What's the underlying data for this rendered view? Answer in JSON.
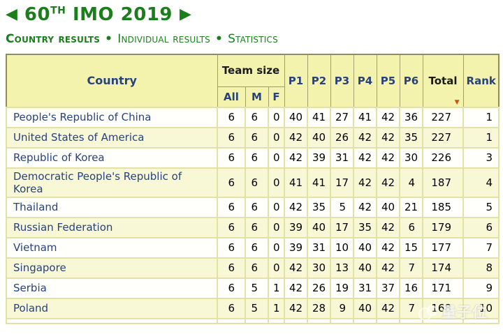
{
  "header": {
    "prev_arrow": "◀",
    "next_arrow": "▶",
    "title_number": "60",
    "title_sup": "TH",
    "title_rest": "IMO 2019"
  },
  "nav": {
    "separator": "•",
    "items": [
      {
        "label": "Country results",
        "active": true
      },
      {
        "label": "Individual results",
        "active": false
      },
      {
        "label": "Statistics",
        "active": false
      }
    ]
  },
  "table": {
    "col_country": "Country",
    "col_team_size": "Team size",
    "subcols": [
      "All",
      "M",
      "F"
    ],
    "col_problems": [
      "P1",
      "P2",
      "P3",
      "P4",
      "P5",
      "P6"
    ],
    "col_total": "Total",
    "col_rank": "Rank",
    "sort_indicator": "▼",
    "sorted_by": "Total",
    "rows": [
      {
        "country": "People's Republic of China",
        "all": 6,
        "m": 6,
        "f": 0,
        "p": [
          40,
          41,
          27,
          41,
          42,
          36
        ],
        "total": 227,
        "rank": 1
      },
      {
        "country": "United States of America",
        "all": 6,
        "m": 6,
        "f": 0,
        "p": [
          42,
          40,
          26,
          42,
          42,
          35
        ],
        "total": 227,
        "rank": 1
      },
      {
        "country": "Republic of Korea",
        "all": 6,
        "m": 6,
        "f": 0,
        "p": [
          42,
          39,
          31,
          42,
          42,
          30
        ],
        "total": 226,
        "rank": 3
      },
      {
        "country": "Democratic People's Republic of Korea",
        "all": 6,
        "m": 6,
        "f": 0,
        "p": [
          41,
          41,
          17,
          42,
          42,
          4
        ],
        "total": 187,
        "rank": 4
      },
      {
        "country": "Thailand",
        "all": 6,
        "m": 6,
        "f": 0,
        "p": [
          42,
          35,
          5,
          42,
          40,
          21
        ],
        "total": 185,
        "rank": 5
      },
      {
        "country": "Russian Federation",
        "all": 6,
        "m": 6,
        "f": 0,
        "p": [
          39,
          40,
          17,
          35,
          42,
          6
        ],
        "total": 179,
        "rank": 6
      },
      {
        "country": "Vietnam",
        "all": 6,
        "m": 6,
        "f": 0,
        "p": [
          39,
          31,
          10,
          40,
          42,
          15
        ],
        "total": 177,
        "rank": 7
      },
      {
        "country": "Singapore",
        "all": 6,
        "m": 6,
        "f": 0,
        "p": [
          42,
          30,
          13,
          40,
          42,
          7
        ],
        "total": 174,
        "rank": 8
      },
      {
        "country": "Serbia",
        "all": 6,
        "m": 5,
        "f": 1,
        "p": [
          42,
          26,
          19,
          31,
          37,
          16
        ],
        "total": 171,
        "rank": 9
      },
      {
        "country": "Poland",
        "all": 6,
        "m": 5,
        "f": 1,
        "p": [
          42,
          28,
          9,
          40,
          42,
          7
        ],
        "total": 168,
        "rank": 10
      }
    ]
  },
  "watermark": {
    "text": "量子位"
  },
  "colors": {
    "green": "#1b7e1b",
    "link_blue": "#27427e",
    "header_bg": "#f3f3ad",
    "row_even_bg": "#f8f8d6",
    "row_odd_bg": "#fffffb",
    "sort_arrow": "#cc5214"
  }
}
